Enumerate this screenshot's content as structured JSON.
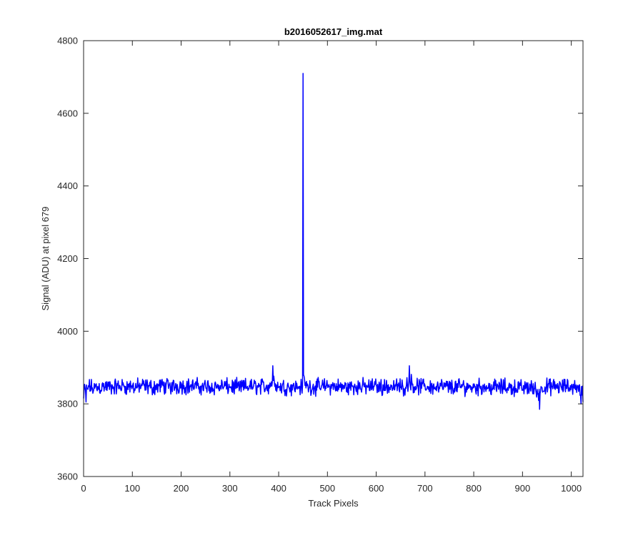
{
  "chart_data": {
    "type": "line",
    "title": "b2016052617_img.mat",
    "xlabel": "Track Pixels",
    "ylabel": "Signal (ADU) at pixel 679",
    "xlim": [
      0,
      1024
    ],
    "ylim": [
      3600,
      4800
    ],
    "x_ticks": [
      0,
      100,
      200,
      300,
      400,
      500,
      600,
      700,
      800,
      900,
      1000
    ],
    "y_ticks": [
      3600,
      3800,
      4000,
      4200,
      4400,
      4600,
      4800
    ],
    "x_tick_labels": [
      "0",
      "100",
      "200",
      "300",
      "400",
      "500",
      "600",
      "700",
      "800",
      "900",
      "1000"
    ],
    "y_tick_labels": [
      "3600",
      "3800",
      "4000",
      "4200",
      "4400",
      "4600",
      "4800"
    ],
    "grid": false,
    "series": [
      {
        "color": "#0000ff",
        "baseline_mean": 3847,
        "baseline_noise_range": [
          3785,
          3905
        ],
        "points": [
          [
            0,
            3815
          ],
          [
            5,
            3805
          ],
          [
            10,
            3850
          ],
          [
            20,
            3835
          ],
          [
            40,
            3848
          ],
          [
            60,
            3842
          ],
          [
            80,
            3852
          ],
          [
            100,
            3846
          ],
          [
            120,
            3850
          ],
          [
            140,
            3844
          ],
          [
            160,
            3855
          ],
          [
            180,
            3848
          ],
          [
            200,
            3858
          ],
          [
            220,
            3853
          ],
          [
            240,
            3849
          ],
          [
            260,
            3845
          ],
          [
            280,
            3850
          ],
          [
            300,
            3847
          ],
          [
            320,
            3843
          ],
          [
            340,
            3851
          ],
          [
            360,
            3848
          ],
          [
            380,
            3852
          ],
          [
            388,
            3905
          ],
          [
            400,
            3846
          ],
          [
            420,
            3849
          ],
          [
            440,
            3845
          ],
          [
            449,
            3850
          ],
          [
            450,
            4710
          ],
          [
            451,
            3880
          ],
          [
            460,
            3850
          ],
          [
            480,
            3846
          ],
          [
            500,
            3851
          ],
          [
            520,
            3848
          ],
          [
            540,
            3844
          ],
          [
            560,
            3850
          ],
          [
            580,
            3847
          ],
          [
            600,
            3852
          ],
          [
            620,
            3846
          ],
          [
            640,
            3849
          ],
          [
            660,
            3845
          ],
          [
            668,
            3905
          ],
          [
            680,
            3848
          ],
          [
            700,
            3851
          ],
          [
            720,
            3845
          ],
          [
            740,
            3848
          ],
          [
            760,
            3843
          ],
          [
            780,
            3849
          ],
          [
            800,
            3845
          ],
          [
            820,
            3848
          ],
          [
            840,
            3842
          ],
          [
            860,
            3846
          ],
          [
            880,
            3841
          ],
          [
            900,
            3838
          ],
          [
            920,
            3842
          ],
          [
            935,
            3785
          ],
          [
            940,
            3845
          ],
          [
            960,
            3847
          ],
          [
            980,
            3844
          ],
          [
            1000,
            3849
          ],
          [
            1010,
            3852
          ],
          [
            1020,
            3800
          ],
          [
            1024,
            3805
          ]
        ]
      }
    ]
  }
}
